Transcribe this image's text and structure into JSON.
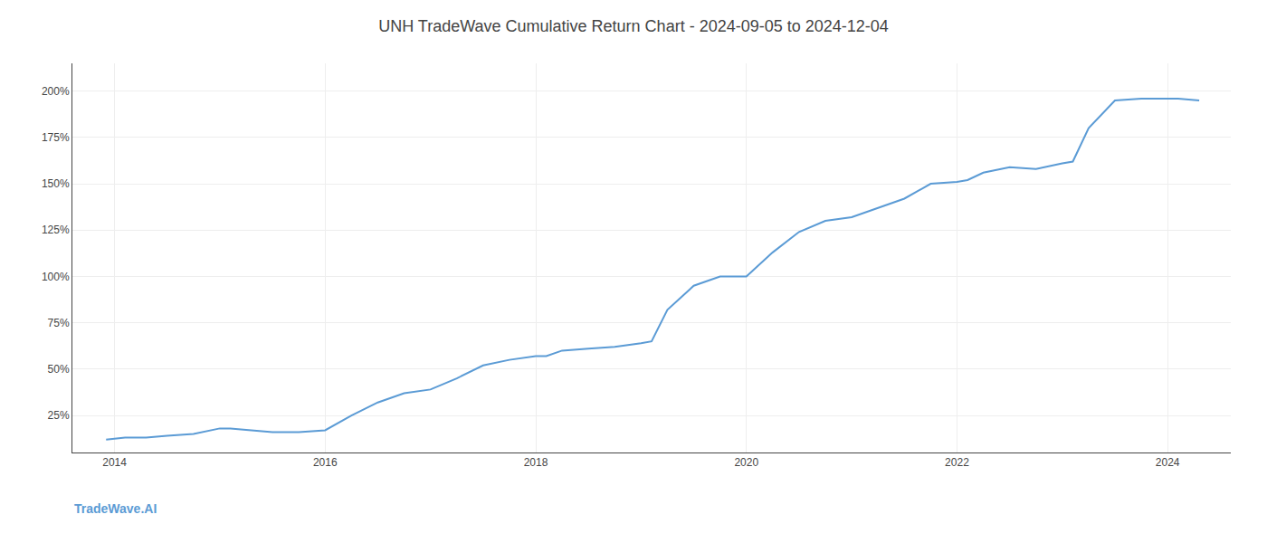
{
  "chart_data": {
    "type": "line",
    "title": "UNH TradeWave Cumulative Return Chart - 2024-09-05 to 2024-12-04",
    "annotations": [
      {
        "text": "TradeWave.AI",
        "color": "#5b9bd5"
      }
    ],
    "color": "#5b9bd5",
    "grid": true,
    "xlim": [
      2013.6,
      2024.6
    ],
    "ylim": [
      5,
      215
    ],
    "xticks": [
      2014,
      2016,
      2018,
      2020,
      2022,
      2024
    ],
    "yticks": [
      {
        "value": 25,
        "label": "25%"
      },
      {
        "value": 50,
        "label": "50%"
      },
      {
        "value": 75,
        "label": "75%"
      },
      {
        "value": 100,
        "label": "100%"
      },
      {
        "value": 125,
        "label": "125%"
      },
      {
        "value": 150,
        "label": "150%"
      },
      {
        "value": 175,
        "label": "175%"
      },
      {
        "value": 200,
        "label": "200%"
      }
    ],
    "x": [
      2013.92,
      2014.0,
      2014.1,
      2014.2,
      2014.3,
      2014.5,
      2014.75,
      2015.0,
      2015.1,
      2015.3,
      2015.5,
      2015.75,
      2016.0,
      2016.25,
      2016.5,
      2016.75,
      2017.0,
      2017.25,
      2017.5,
      2017.75,
      2018.0,
      2018.1,
      2018.25,
      2018.5,
      2018.75,
      2019.0,
      2019.1,
      2019.25,
      2019.5,
      2019.75,
      2020.0,
      2020.25,
      2020.5,
      2020.75,
      2021.0,
      2021.25,
      2021.5,
      2021.75,
      2022.0,
      2022.1,
      2022.25,
      2022.5,
      2022.75,
      2023.0,
      2023.1,
      2023.25,
      2023.5,
      2023.75,
      2024.0,
      2024.1,
      2024.3
    ],
    "values": [
      12,
      12.5,
      13,
      13,
      13,
      14,
      15,
      18,
      18,
      17,
      16,
      16,
      17,
      25,
      32,
      37,
      39,
      45,
      52,
      55,
      57,
      57,
      60,
      61,
      62,
      64,
      65,
      82,
      95,
      100,
      100,
      113,
      124,
      130,
      132,
      137,
      142,
      150,
      151,
      152,
      156,
      159,
      158,
      161,
      162,
      180,
      195,
      196,
      196,
      196,
      195
    ]
  }
}
